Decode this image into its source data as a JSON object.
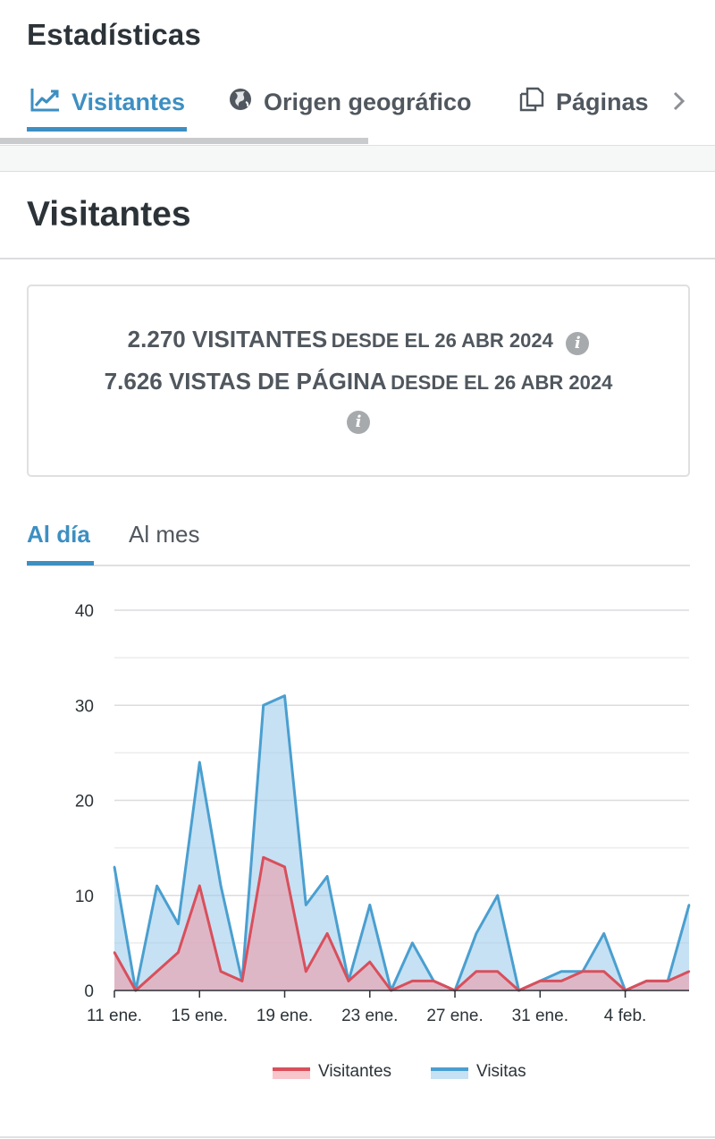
{
  "app": {
    "title": "Estadísticas"
  },
  "tabs": [
    {
      "label": "Visitantes",
      "icon": "trend-chart-icon",
      "active": true
    },
    {
      "label": "Origen geográfico",
      "icon": "globe-icon",
      "active": false
    },
    {
      "label": "Páginas",
      "icon": "pages-icon",
      "active": false
    }
  ],
  "section": {
    "title": "Visitantes"
  },
  "summary": {
    "visitors_count": "2.270 VISITANTES",
    "visitors_since": "DESDE EL 26 ABR 2024",
    "views_count": "7.626 VISTAS DE PÁGINA",
    "views_since": "DESDE EL 26 ABR 2024"
  },
  "period_tabs": {
    "day": "Al día",
    "month": "Al mes",
    "active": "day"
  },
  "colors": {
    "accent": "#3d8fc2",
    "visitors": "#d94f5c",
    "views": "#4a9fd0"
  },
  "chart_data": {
    "type": "area",
    "x": [
      "11 ene.",
      "12 ene.",
      "13 ene.",
      "14 ene.",
      "15 ene.",
      "16 ene.",
      "17 ene.",
      "18 ene.",
      "19 ene.",
      "20 ene.",
      "21 ene.",
      "22 ene.",
      "23 ene.",
      "24 ene.",
      "25 ene.",
      "26 ene.",
      "27 ene.",
      "28 ene.",
      "29 ene.",
      "30 ene.",
      "31 ene.",
      "1 feb.",
      "2 feb.",
      "3 feb.",
      "4 feb.",
      "5 feb.",
      "6 feb.",
      "7 feb."
    ],
    "x_tick_labels": [
      "11 ene.",
      "15 ene.",
      "19 ene.",
      "23 ene.",
      "27 ene.",
      "31 ene.",
      "4 feb."
    ],
    "series": [
      {
        "name": "Visitas",
        "values": [
          13,
          0,
          11,
          7,
          24,
          11,
          1,
          30,
          31,
          9,
          12,
          1,
          9,
          0,
          5,
          1,
          0,
          6,
          10,
          0,
          1,
          2,
          2,
          6,
          0,
          1,
          1,
          9
        ]
      },
      {
        "name": "Visitantes",
        "values": [
          4,
          0,
          2,
          4,
          11,
          2,
          1,
          14,
          13,
          2,
          6,
          1,
          3,
          0,
          1,
          1,
          0,
          2,
          2,
          0,
          1,
          1,
          2,
          2,
          0,
          1,
          1,
          2
        ]
      }
    ],
    "ylim": [
      0,
      40
    ],
    "y_ticks": [
      0,
      10,
      20,
      30,
      40
    ],
    "grid": true,
    "legend": {
      "position": "bottom",
      "entries": [
        "Visitantes",
        "Visitas"
      ]
    }
  }
}
